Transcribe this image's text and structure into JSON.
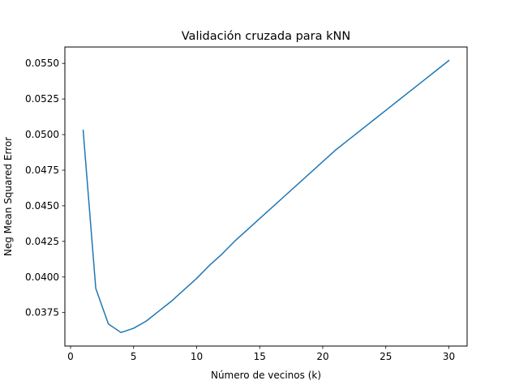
{
  "chart_data": {
    "type": "line",
    "title": "Validación cruzada para kNN",
    "xlabel": "Número de vecinos (k)",
    "ylabel": "Neg Mean Squared Error",
    "xlim": [
      -0.45,
      31.45
    ],
    "ylim": [
      0.03515,
      0.05615
    ],
    "xticks": [
      0,
      5,
      10,
      15,
      20,
      25,
      30
    ],
    "xtick_labels": [
      "0",
      "5",
      "10",
      "15",
      "20",
      "25",
      "30"
    ],
    "yticks": [
      0.0375,
      0.04,
      0.0425,
      0.045,
      0.0475,
      0.05,
      0.0525,
      0.055
    ],
    "ytick_labels": [
      "0.0375",
      "0.0400",
      "0.0425",
      "0.0450",
      "0.0475",
      "0.0500",
      "0.0525",
      "0.0550"
    ],
    "grid": false,
    "series": [
      {
        "color": "#1f77b4",
        "x": [
          1,
          2,
          3,
          4,
          5,
          6,
          7,
          8,
          9,
          10,
          11,
          12,
          13,
          14,
          15,
          16,
          17,
          18,
          19,
          20,
          21,
          22,
          23,
          24,
          25,
          26,
          27,
          28,
          29,
          30
        ],
        "y": [
          0.0503,
          0.0392,
          0.0367,
          0.0361,
          0.0364,
          0.0369,
          0.0376,
          0.0383,
          0.0391,
          0.0399,
          0.0408,
          0.0416,
          0.0425,
          0.0433,
          0.0441,
          0.0449,
          0.0457,
          0.0465,
          0.0473,
          0.0481,
          0.0489,
          0.0496,
          0.0503,
          0.051,
          0.0517,
          0.0524,
          0.0531,
          0.0538,
          0.0545,
          0.0552
        ]
      }
    ]
  }
}
